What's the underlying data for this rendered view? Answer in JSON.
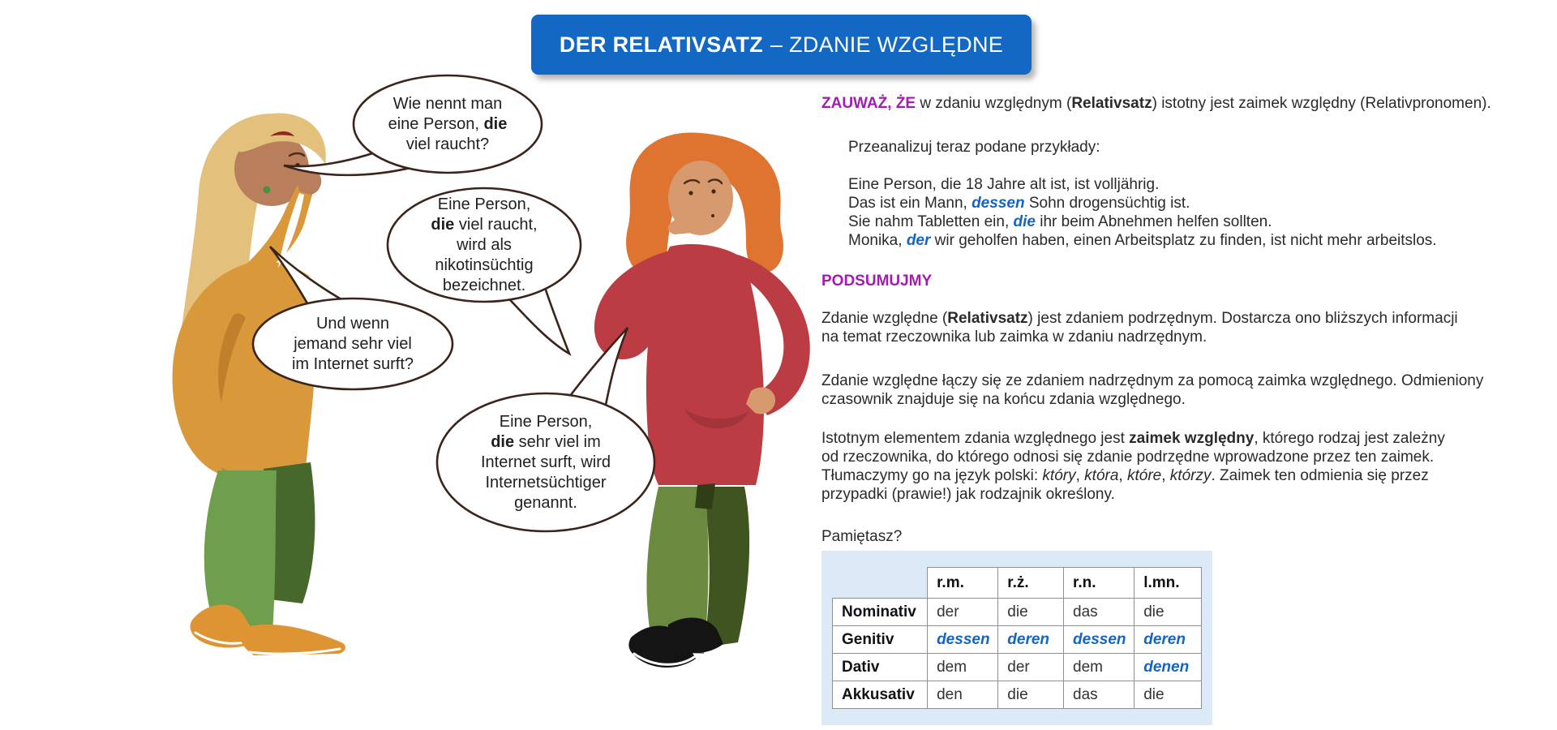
{
  "title": {
    "bold_part": "DER RELATIVSATZ",
    "regular_part": "– ZDANIE WZGLĘDNE"
  },
  "colors": {
    "banner_blue": "#1268C3",
    "accent_purple": "#A21CAF",
    "accent_blue": "#1565C0",
    "text": "#2A2A2A",
    "bubble_outline": "#3B241A",
    "panel_bg": "#DCE9F6",
    "table_border": "#8F8F8F",
    "hair_blonde": "#E3C17C",
    "sweater_mustard": "#D9993B",
    "pants_green_light": "#6F9E4D",
    "pants_green_dark": "#47682C",
    "shoes_orange": "#DF9434",
    "skin_left": "#B97E5B",
    "hair_orange": "#DE7430",
    "skin_right": "#D79A6F",
    "sweater_red": "#BC3C44",
    "pants_olive_light": "#6B8A3F",
    "pants_olive_dark": "#3F541F",
    "shoes_black": "#141414"
  },
  "bubbles": [
    {
      "speaker": "blonde-woman",
      "segments": [
        {
          "t": "Wie nennt man"
        },
        {
          "br": true
        },
        {
          "t": "eine Person, "
        },
        {
          "t": "die",
          "s": "b"
        },
        {
          "br": true
        },
        {
          "t": "viel raucht?"
        }
      ]
    },
    {
      "speaker": "redhead-woman",
      "segments": [
        {
          "t": "Eine Person,"
        },
        {
          "br": true
        },
        {
          "t": "die",
          "s": "b"
        },
        {
          "t": " viel raucht,"
        },
        {
          "br": true
        },
        {
          "t": "wird als"
        },
        {
          "br": true
        },
        {
          "t": "nikotinsüchtig"
        },
        {
          "br": true
        },
        {
          "t": "bezeichnet."
        }
      ]
    },
    {
      "speaker": "blonde-woman",
      "segments": [
        {
          "t": "Und wenn"
        },
        {
          "br": true
        },
        {
          "t": "jemand sehr viel"
        },
        {
          "br": true
        },
        {
          "t": "im Internet surft?"
        }
      ]
    },
    {
      "speaker": "redhead-woman",
      "segments": [
        {
          "t": "Eine Person,"
        },
        {
          "br": true
        },
        {
          "t": "die",
          "s": "b"
        },
        {
          "t": " sehr viel im"
        },
        {
          "br": true
        },
        {
          "t": "Internet surft, wird"
        },
        {
          "br": true
        },
        {
          "t": "Internetsüchtiger"
        },
        {
          "br": true
        },
        {
          "t": "genannt."
        }
      ]
    }
  ],
  "content": {
    "note": [
      {
        "t": "ZAUWAŻ, ŻE",
        "s": "purple"
      },
      {
        "t": " w zdaniu względnym ("
      },
      {
        "t": "Relativsatz",
        "s": "b"
      },
      {
        "t": ") istotny jest zaimek względny (Relativpronomen)."
      }
    ],
    "examples_intro": [
      {
        "t": "Przeanalizuj teraz podane przykłady:"
      }
    ],
    "examples": [
      [
        {
          "t": "Eine Person, die 18 Jahre alt ist, ist volljährig."
        }
      ],
      [
        {
          "t": "Das ist ein Mann, "
        },
        {
          "t": "dessen",
          "s": "blue"
        },
        {
          "t": " Sohn drogensüchtig ist."
        }
      ],
      [
        {
          "t": "Sie nahm Tabletten ein, "
        },
        {
          "t": "die",
          "s": "blue"
        },
        {
          "t": " ihr beim Abnehmen helfen sollten."
        }
      ],
      [
        {
          "t": "Monika, "
        },
        {
          "t": "der",
          "s": "blue"
        },
        {
          "t": " wir geholfen haben, einen Arbeitsplatz zu finden, ist nicht mehr arbeitslos."
        }
      ]
    ],
    "summary_heading": [
      {
        "t": "PODSUMUJMY",
        "s": "purple"
      }
    ],
    "p1": [
      {
        "t": "Zdanie względne ("
      },
      {
        "t": "Relativsatz",
        "s": "b"
      },
      {
        "t": ") jest zdaniem podrzędnym. Dostarcza ono bliższych informacji"
      },
      {
        "br": true
      },
      {
        "t": "na temat rzeczownika lub zaimka w zdaniu nadrzędnym."
      }
    ],
    "p2": [
      {
        "t": "Zdanie względne łączy się ze zdaniem nadrzędnym za pomocą zaimka względnego. Odmieniony"
      },
      {
        "br": true
      },
      {
        "t": "czasownik znajduje się na końcu zdania względnego."
      }
    ],
    "p3": [
      {
        "t": "Istotnym elementem zdania względnego jest "
      },
      {
        "t": "zaimek względny",
        "s": "b"
      },
      {
        "t": ", którego rodzaj jest zależny"
      },
      {
        "br": true
      },
      {
        "t": "od rzeczownika, do którego odnosi się zdanie podrzędne wprowadzone przez ten zaimek."
      },
      {
        "br": true
      },
      {
        "t": "Tłumaczymy go na język polski: "
      },
      {
        "t": "który",
        "s": "i"
      },
      {
        "t": ", "
      },
      {
        "t": "która",
        "s": "i"
      },
      {
        "t": ", "
      },
      {
        "t": "które",
        "s": "i"
      },
      {
        "t": ", "
      },
      {
        "t": "którzy",
        "s": "i"
      },
      {
        "t": ". Zaimek ten odmienia się przez"
      },
      {
        "br": true
      },
      {
        "t": "przypadki (prawie!) jak rodzajnik określony."
      }
    ],
    "remember": [
      {
        "t": "Pamiętasz?"
      }
    ]
  },
  "table": {
    "col_headers": [
      "r.m.",
      "r.ż.",
      "r.n.",
      "l.mn."
    ],
    "rows": [
      {
        "label": "Nominativ",
        "cells": [
          {
            "t": "der"
          },
          {
            "t": "die"
          },
          {
            "t": "das"
          },
          {
            "t": "die"
          }
        ]
      },
      {
        "label": "Genitiv",
        "cells": [
          {
            "t": "dessen",
            "s": "blue"
          },
          {
            "t": "deren",
            "s": "blue"
          },
          {
            "t": "dessen",
            "s": "blue"
          },
          {
            "t": "deren",
            "s": "blue"
          }
        ]
      },
      {
        "label": "Dativ",
        "cells": [
          {
            "t": "dem"
          },
          {
            "t": "der"
          },
          {
            "t": "dem"
          },
          {
            "t": "denen",
            "s": "blue"
          }
        ]
      },
      {
        "label": "Akkusativ",
        "cells": [
          {
            "t": "den"
          },
          {
            "t": "die"
          },
          {
            "t": "das"
          },
          {
            "t": "die"
          }
        ]
      }
    ]
  }
}
